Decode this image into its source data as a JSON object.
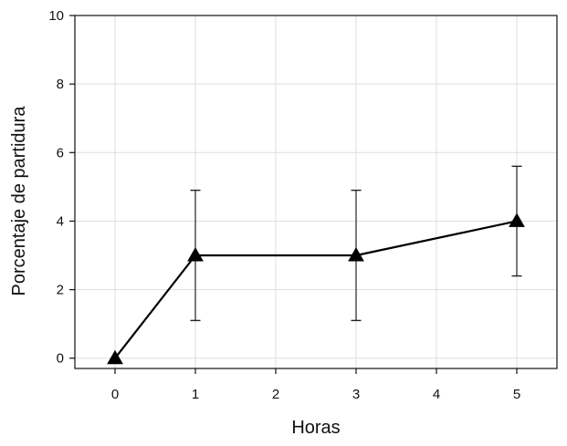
{
  "chart_data": {
    "type": "line",
    "title": "",
    "xlabel": "Horas",
    "ylabel": "Porcentaje de partidura",
    "xlim": [
      -0.5,
      5.5
    ],
    "ylim": [
      -0.3,
      10
    ],
    "xticks": [
      0,
      1,
      2,
      3,
      4,
      5
    ],
    "yticks": [
      0,
      2,
      4,
      6,
      8,
      10
    ],
    "grid": true,
    "series": [
      {
        "x": [
          0,
          1,
          3,
          5
        ],
        "y": [
          0,
          3,
          3,
          4
        ],
        "error_low": [
          0,
          1.1,
          1.1,
          2.4
        ],
        "error_high": [
          0,
          4.9,
          4.9,
          5.6
        ],
        "marker": "triangle",
        "color": "#000000"
      }
    ]
  }
}
